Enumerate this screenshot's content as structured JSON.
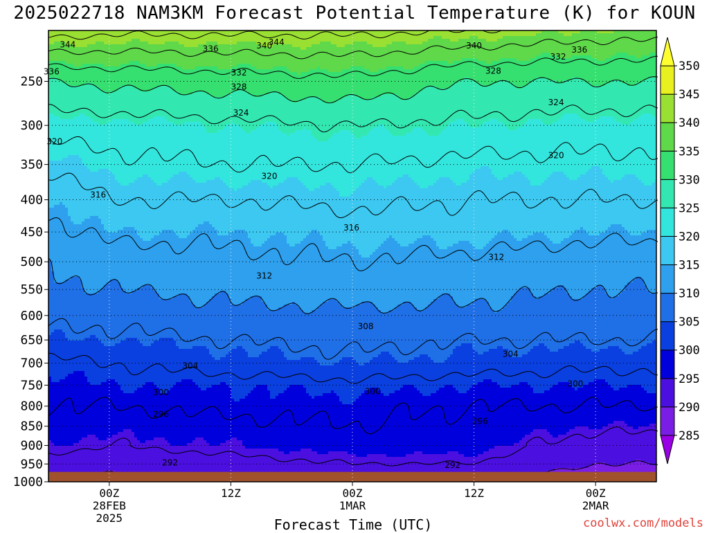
{
  "chart_data": {
    "type": "heatmap",
    "title": "2025022718 NAM3KM Forecast Potential Temperature (K) for KOUN",
    "xlabel": "Forecast Time (UTC)",
    "ylabel": "",
    "credit": "coolwx.com/models",
    "y_axis": {
      "scale": "pressure (log-like), inverted",
      "range": [
        200,
        1000
      ],
      "tick_labels": [
        "250",
        "300",
        "350",
        "400",
        "450",
        "500",
        "550",
        "600",
        "650",
        "700",
        "750",
        "800",
        "850",
        "900",
        "950",
        "1000"
      ]
    },
    "x_axis": {
      "range_hours": [
        -6,
        54
      ],
      "ticks": [
        {
          "hour": 0,
          "lines": [
            "00Z",
            "28FEB",
            "2025"
          ]
        },
        {
          "hour": 12,
          "lines": [
            "12Z"
          ]
        },
        {
          "hour": 24,
          "lines": [
            "00Z",
            "1MAR"
          ]
        },
        {
          "hour": 36,
          "lines": [
            "12Z"
          ]
        },
        {
          "hour": 48,
          "lines": [
            "00Z",
            "2MAR"
          ]
        }
      ]
    },
    "grid": true,
    "colorbar": {
      "placement": "right",
      "levels": [
        285,
        290,
        295,
        300,
        305,
        310,
        315,
        320,
        325,
        330,
        335,
        340,
        345,
        350
      ],
      "colors": [
        "#9a00e6",
        "#7a1ee6",
        "#4b0fe0",
        "#0000dd",
        "#0a3fe0",
        "#1f6fe6",
        "#2ea0ee",
        "#3cc8f0",
        "#33e6dd",
        "#33e8b0",
        "#35e070",
        "#5fd84a",
        "#9ae032",
        "#e8f020",
        "#ffff30"
      ]
    },
    "ground_color": "#a0522d",
    "ground_level_hpa": 972,
    "contour_interval": 4,
    "theta_profiles": [
      {
        "hour": -6,
        "levels": [
          [
            1000,
            289
          ],
          [
            970,
            291
          ],
          [
            950,
            293
          ],
          [
            900,
            295
          ],
          [
            850,
            297
          ],
          [
            800,
            298
          ],
          [
            750,
            299
          ],
          [
            700,
            301
          ],
          [
            650,
            305
          ],
          [
            600,
            307
          ],
          [
            550,
            309
          ],
          [
            500,
            310
          ],
          [
            450,
            313
          ],
          [
            400,
            315
          ],
          [
            350,
            319
          ],
          [
            300,
            324
          ],
          [
            250,
            330
          ],
          [
            200,
            344
          ]
        ]
      },
      {
        "hour": 0,
        "levels": [
          [
            1000,
            289
          ],
          [
            970,
            290
          ],
          [
            950,
            292
          ],
          [
            900,
            294
          ],
          [
            850,
            296
          ],
          [
            800,
            298
          ],
          [
            750,
            300
          ],
          [
            700,
            302
          ],
          [
            650,
            305
          ],
          [
            600,
            307
          ],
          [
            550,
            310
          ],
          [
            500,
            312
          ],
          [
            450,
            315
          ],
          [
            400,
            318
          ],
          [
            350,
            321
          ],
          [
            300,
            324
          ],
          [
            250,
            331
          ],
          [
            200,
            343
          ]
        ]
      },
      {
        "hour": 12,
        "levels": [
          [
            1000,
            291
          ],
          [
            970,
            292
          ],
          [
            950,
            293
          ],
          [
            900,
            295
          ],
          [
            850,
            297
          ],
          [
            800,
            299
          ],
          [
            750,
            300
          ],
          [
            700,
            304
          ],
          [
            650,
            306
          ],
          [
            600,
            309
          ],
          [
            550,
            311
          ],
          [
            500,
            313
          ],
          [
            450,
            315
          ],
          [
            400,
            318
          ],
          [
            350,
            322
          ],
          [
            300,
            325
          ],
          [
            250,
            332
          ],
          [
            200,
            343
          ]
        ]
      },
      {
        "hour": 24,
        "levels": [
          [
            1000,
            292
          ],
          [
            970,
            293
          ],
          [
            950,
            294
          ],
          [
            900,
            296
          ],
          [
            850,
            298
          ],
          [
            800,
            299
          ],
          [
            750,
            301
          ],
          [
            700,
            305
          ],
          [
            650,
            307
          ],
          [
            600,
            309
          ],
          [
            550,
            312
          ],
          [
            500,
            314
          ],
          [
            450,
            316
          ],
          [
            400,
            319
          ],
          [
            350,
            322
          ],
          [
            300,
            326
          ],
          [
            250,
            333
          ],
          [
            200,
            343
          ]
        ]
      },
      {
        "hour": 36,
        "levels": [
          [
            1000,
            290
          ],
          [
            970,
            292
          ],
          [
            950,
            294
          ],
          [
            900,
            296
          ],
          [
            850,
            297
          ],
          [
            800,
            298
          ],
          [
            750,
            300
          ],
          [
            700,
            304
          ],
          [
            650,
            306
          ],
          [
            600,
            309
          ],
          [
            550,
            311
          ],
          [
            500,
            313
          ],
          [
            450,
            316
          ],
          [
            400,
            318
          ],
          [
            350,
            321
          ],
          [
            300,
            325
          ],
          [
            250,
            330
          ],
          [
            200,
            342
          ]
        ]
      },
      {
        "hour": 48,
        "levels": [
          [
            1000,
            288
          ],
          [
            970,
            289
          ],
          [
            950,
            290
          ],
          [
            900,
            292
          ],
          [
            850,
            295
          ],
          [
            800,
            298
          ],
          [
            750,
            300
          ],
          [
            700,
            303
          ],
          [
            650,
            306
          ],
          [
            600,
            308
          ],
          [
            550,
            310
          ],
          [
            500,
            312
          ],
          [
            450,
            315
          ],
          [
            400,
            318
          ],
          [
            350,
            321
          ],
          [
            300,
            324
          ],
          [
            250,
            330
          ],
          [
            200,
            340
          ]
        ]
      },
      {
        "hour": 54,
        "levels": [
          [
            1000,
            288
          ],
          [
            970,
            289
          ],
          [
            950,
            290
          ],
          [
            900,
            292
          ],
          [
            850,
            295
          ],
          [
            800,
            298
          ],
          [
            750,
            300
          ],
          [
            700,
            303
          ],
          [
            650,
            306
          ],
          [
            600,
            308
          ],
          [
            550,
            310
          ],
          [
            500,
            312
          ],
          [
            450,
            315
          ],
          [
            400,
            318
          ],
          [
            350,
            321
          ],
          [
            300,
            324
          ],
          [
            250,
            330
          ],
          [
            200,
            340
          ]
        ]
      }
    ],
    "contour_labels": [
      {
        "text": "344",
        "hour": -4.1,
        "hpa": 213
      },
      {
        "text": "344",
        "hour": 16.5,
        "hpa": 211
      },
      {
        "text": "340",
        "hour": 15.3,
        "hpa": 214
      },
      {
        "text": "340",
        "hour": 36.0,
        "hpa": 214
      },
      {
        "text": "336",
        "hour": -5.7,
        "hpa": 240
      },
      {
        "text": "336",
        "hour": 10.0,
        "hpa": 217
      },
      {
        "text": "336",
        "hour": 46.4,
        "hpa": 218
      },
      {
        "text": "332",
        "hour": 12.8,
        "hpa": 241
      },
      {
        "text": "332",
        "hour": 44.3,
        "hpa": 225
      },
      {
        "text": "328",
        "hour": 12.8,
        "hpa": 256
      },
      {
        "text": "328",
        "hour": 37.9,
        "hpa": 239
      },
      {
        "text": "324",
        "hour": 13.0,
        "hpa": 285
      },
      {
        "text": "324",
        "hour": 44.1,
        "hpa": 273
      },
      {
        "text": "320",
        "hour": -5.4,
        "hpa": 320
      },
      {
        "text": "320",
        "hour": 15.8,
        "hpa": 366
      },
      {
        "text": "320",
        "hour": 44.1,
        "hpa": 338
      },
      {
        "text": "316",
        "hour": -1.1,
        "hpa": 393
      },
      {
        "text": "316",
        "hour": 23.9,
        "hpa": 443
      },
      {
        "text": "312",
        "hour": 15.3,
        "hpa": 525
      },
      {
        "text": "312",
        "hour": 38.2,
        "hpa": 492
      },
      {
        "text": "308",
        "hour": 25.3,
        "hpa": 622
      },
      {
        "text": "304",
        "hour": 8.0,
        "hpa": 706
      },
      {
        "text": "304",
        "hour": 39.6,
        "hpa": 680
      },
      {
        "text": "300",
        "hour": 5.1,
        "hpa": 767
      },
      {
        "text": "300",
        "hour": 26.0,
        "hpa": 765
      },
      {
        "text": "300",
        "hour": 46.0,
        "hpa": 747
      },
      {
        "text": "296",
        "hour": 5.1,
        "hpa": 820
      },
      {
        "text": "296",
        "hour": 36.6,
        "hpa": 837
      },
      {
        "text": "292",
        "hour": 6.0,
        "hpa": 947
      },
      {
        "text": "292",
        "hour": 33.9,
        "hpa": 953
      }
    ]
  }
}
